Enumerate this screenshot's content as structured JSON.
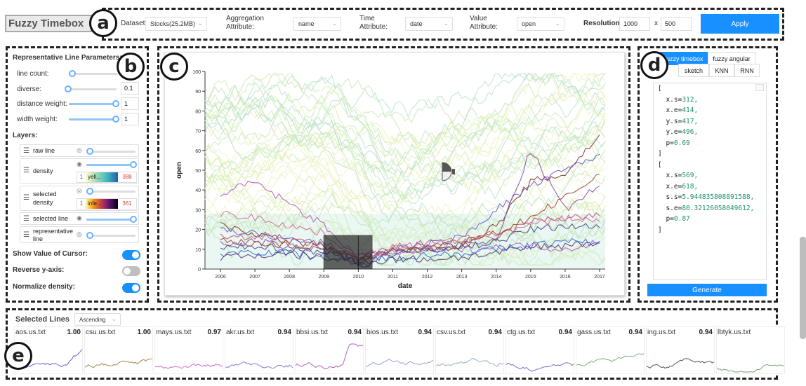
{
  "app_title": "Fuzzy Timebox",
  "markers": {
    "a": "a",
    "b": "b",
    "c": "c",
    "d": "d",
    "e": "e"
  },
  "toolbar": {
    "dataset_label": "Dataset:",
    "dataset_value": "Stocks(25.2MB)",
    "aggregation_label_1": "Aggregation",
    "aggregation_label_2": "Attribute:",
    "aggregation_value": "name",
    "time_label_1": "Time",
    "time_label_2": "Attribute:",
    "time_value": "date",
    "value_label_1": "Value",
    "value_label_2": "Attribute:",
    "value_value": "open",
    "resolution_label": "Resolution:",
    "resolution_w": "1000",
    "resolution_x": "x",
    "resolution_h": "500",
    "apply_label": "Apply"
  },
  "params": {
    "heading": "Representative Line Parameters:",
    "line_count_label": "line count:",
    "diverse_label": "diverse:",
    "diverse_value": "0.1",
    "distance_label": "distance weight:",
    "distance_value": "1",
    "width_label": "width weight:",
    "width_value": "1"
  },
  "layers": {
    "heading": "Layers:",
    "raw_line": "raw line",
    "density": "density",
    "density_min": "1",
    "density_cmap": "yell...",
    "density_max": "388",
    "selected_density_1": "selected",
    "selected_density_2": "density",
    "sel_density_min": "1",
    "sel_density_cmap": "infe...",
    "sel_density_max": "361",
    "selected_line": "selected line",
    "representative_1": "representative",
    "representative_2": "line"
  },
  "switches": {
    "show_value": "Show Value of Cursor:",
    "show_value_on": true,
    "reverse_y": "Reverse y-axis:",
    "reverse_y_on": false,
    "normalize": "Normalize density:",
    "normalize_on": true
  },
  "chart_data": {
    "type": "line",
    "xlabel": "date",
    "ylabel": "open",
    "ylim": [
      0,
      100
    ],
    "yticks": [
      "0",
      "10",
      "20",
      "30",
      "40",
      "50",
      "60",
      "70",
      "80",
      "90",
      "100"
    ],
    "xticks": [
      "2006",
      "2007",
      "2008",
      "2009",
      "2010",
      "2011",
      "2012",
      "2013",
      "2014",
      "2015",
      "2016",
      "2017"
    ],
    "query_box_1": {
      "x_start": "2009",
      "x_end": "2010",
      "y_start": 0,
      "y_end": 17
    },
    "query_box_2": {
      "x_start": "2010",
      "x_end": "2010.4",
      "y_start": 0,
      "y_end": 17
    },
    "series": [
      {
        "color": "#b25fc4",
        "values": [
          38,
          44,
          33,
          22,
          6,
          8,
          9,
          10,
          11,
          12,
          10,
          14
        ]
      },
      {
        "color": "#7a3b2e",
        "values": [
          22,
          18,
          14,
          12,
          4,
          9,
          10,
          12,
          22,
          44,
          48,
          68
        ]
      },
      {
        "color": "#6a5bd6",
        "values": [
          20,
          18,
          15,
          13,
          5,
          10,
          12,
          16,
          30,
          42,
          50,
          58
        ]
      },
      {
        "color": "#c05a7c",
        "values": [
          16,
          17,
          14,
          12,
          5,
          11,
          13,
          14,
          16,
          24,
          26,
          27
        ]
      },
      {
        "color": "#8a4fb8",
        "values": [
          12,
          14,
          11,
          10,
          4,
          9,
          10,
          12,
          14,
          60,
          30,
          42
        ]
      },
      {
        "color": "#4a4a8a",
        "values": [
          10,
          12,
          10,
          9,
          3,
          8,
          10,
          11,
          14,
          20,
          22,
          21
        ]
      },
      {
        "color": "#3a6fd6",
        "values": [
          8,
          9,
          8,
          7,
          2,
          6,
          7,
          8,
          10,
          12,
          14,
          13
        ]
      },
      {
        "color": "#d66a9c",
        "values": [
          28,
          26,
          22,
          18,
          6,
          11,
          12,
          15,
          18,
          22,
          26,
          24
        ]
      },
      {
        "color": "#5b3d7a",
        "values": [
          6,
          7,
          7,
          6,
          2,
          5,
          5,
          6,
          8,
          11,
          12,
          14
        ]
      },
      {
        "color": "#a4452f",
        "values": [
          14,
          13,
          12,
          11,
          4,
          10,
          11,
          12,
          18,
          26,
          36,
          48
        ]
      }
    ],
    "background_lines": 40
  },
  "right_panel": {
    "tab_fuzzy_timebox": "fuzzy timebox",
    "tab_fuzzy_angular": "fuzzy angular",
    "tab_sketch": "sketch",
    "tab_knn": "KNN",
    "tab_rnn": "RNN",
    "code_lines": [
      {
        "t": "[",
        "k": "",
        "v": ""
      },
      {
        "t": "",
        "k": "  x.s=",
        "v": "312,"
      },
      {
        "t": "",
        "k": "  x.e=",
        "v": "414,"
      },
      {
        "t": "",
        "k": "  y.s=",
        "v": "417,"
      },
      {
        "t": "",
        "k": "  y.e=",
        "v": "496,"
      },
      {
        "t": "",
        "k": "  p=",
        "v": "0.69"
      },
      {
        "t": "]",
        "k": "",
        "v": ""
      },
      {
        "t": "[",
        "k": "",
        "v": ""
      },
      {
        "t": "",
        "k": "  x.s=",
        "v": "569,"
      },
      {
        "t": "",
        "k": "  x.e=",
        "v": "618,"
      },
      {
        "t": "",
        "k": "  s.s=",
        "v": "5.944835808891588,"
      },
      {
        "t": "",
        "k": "  s.e=",
        "v": "80.32126058049612,"
      },
      {
        "t": "",
        "k": "  p=",
        "v": "0.87"
      },
      {
        "t": "]",
        "k": "",
        "v": ""
      }
    ],
    "generate_label": "Generate"
  },
  "selected_lines": {
    "heading": "Selected Lines",
    "order_value": "Ascending",
    "items": [
      {
        "name": "aos.us.txt",
        "score": "1.00",
        "color": "#6a5bd6"
      },
      {
        "name": "csu.us.txt",
        "score": "1.00",
        "color": "#a88a4a"
      },
      {
        "name": "mays.us.txt",
        "score": "0.97",
        "color": "#d66ac4"
      },
      {
        "name": "akr.us.txt",
        "score": "0.94",
        "color": "#8a7ad6"
      },
      {
        "name": "bbsi.us.txt",
        "score": "0.94",
        "color": "#b25fc4"
      },
      {
        "name": "bios.us.txt",
        "score": "0.94",
        "color": "#9aa0d6"
      },
      {
        "name": "csv.us.txt",
        "score": "0.94",
        "color": "#9ab0c0"
      },
      {
        "name": "ctg.us.txt",
        "score": "0.94",
        "color": "#7a6ad6"
      },
      {
        "name": "gass.us.txt",
        "score": "0.94",
        "color": "#7ab07a"
      },
      {
        "name": "ing.us.txt",
        "score": "0.94",
        "color": "#555555"
      },
      {
        "name": "lbtyk.us.txt",
        "score": "",
        "color": "#7aa07a"
      }
    ]
  }
}
